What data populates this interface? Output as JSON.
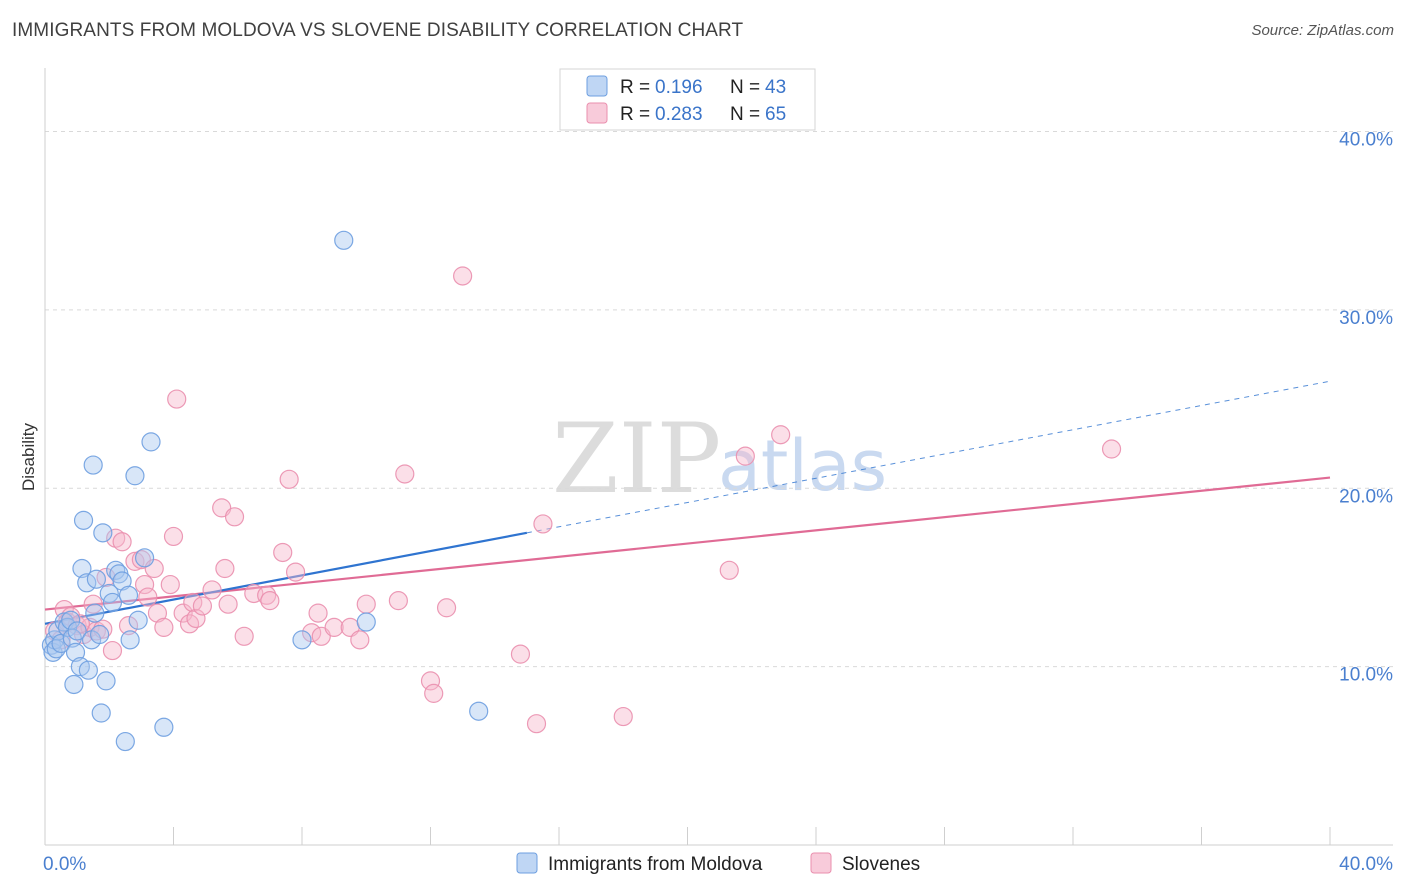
{
  "header": {
    "title": "IMMIGRANTS FROM MOLDOVA VS SLOVENE DISABILITY CORRELATION CHART",
    "source": "Source: ZipAtlas.com"
  },
  "watermark": {
    "zip": "ZIP",
    "atlas": "atlas"
  },
  "legend": {
    "rows": [
      {
        "r_label": "R =",
        "r_value": "0.196",
        "n_label": "N =",
        "n_value": "43"
      },
      {
        "r_label": "R =",
        "r_value": "0.283",
        "n_label": "N =",
        "n_value": "65"
      }
    ]
  },
  "bottom_legend": {
    "items": [
      {
        "label": "Immigrants from Moldova"
      },
      {
        "label": "Slovenes"
      }
    ]
  },
  "colors": {
    "blue_fill": "#a9c8f0",
    "blue_stroke": "#6e9fe0",
    "blue_line": "#2f74d0",
    "pink_fill": "#f6b9cd",
    "pink_stroke": "#ea8fae",
    "pink_line": "#e06b95",
    "grid": "#d9d9d9",
    "axis": "#cfcfcf"
  },
  "chart_data": {
    "type": "scatter",
    "title": "IMMIGRANTS FROM MOLDOVA VS SLOVENE DISABILITY CORRELATION CHART",
    "xlabel": "",
    "ylabel": "Disability",
    "xlim": [
      0,
      40
    ],
    "ylim": [
      0,
      43
    ],
    "x_tick_labels": [
      "0.0%",
      "40.0%"
    ],
    "y_ticks": [
      10,
      20,
      30,
      40
    ],
    "y_tick_labels": [
      "10.0%",
      "20.0%",
      "30.0%",
      "40.0%"
    ],
    "series": [
      {
        "name": "Immigrants from Moldova",
        "r": 0.196,
        "n": 43,
        "points": [
          [
            0.2,
            11.2
          ],
          [
            0.25,
            10.8
          ],
          [
            0.3,
            11.5
          ],
          [
            0.35,
            11.0
          ],
          [
            0.4,
            12.0
          ],
          [
            0.5,
            11.3
          ],
          [
            0.6,
            12.5
          ],
          [
            0.7,
            12.2
          ],
          [
            0.8,
            12.6
          ],
          [
            0.85,
            11.6
          ],
          [
            0.9,
            9.0
          ],
          [
            0.95,
            10.8
          ],
          [
            1.0,
            12.0
          ],
          [
            1.1,
            10.0
          ],
          [
            1.15,
            15.5
          ],
          [
            1.2,
            18.2
          ],
          [
            1.3,
            14.7
          ],
          [
            1.35,
            9.8
          ],
          [
            1.45,
            11.5
          ],
          [
            1.5,
            21.3
          ],
          [
            1.55,
            13.0
          ],
          [
            1.6,
            14.9
          ],
          [
            1.7,
            11.8
          ],
          [
            1.75,
            7.4
          ],
          [
            1.8,
            17.5
          ],
          [
            1.9,
            9.2
          ],
          [
            2.0,
            14.1
          ],
          [
            2.1,
            13.6
          ],
          [
            2.2,
            15.4
          ],
          [
            2.3,
            15.2
          ],
          [
            2.4,
            14.8
          ],
          [
            2.5,
            5.8
          ],
          [
            2.6,
            14.0
          ],
          [
            2.8,
            20.7
          ],
          [
            2.9,
            12.6
          ],
          [
            3.1,
            16.1
          ],
          [
            3.3,
            22.6
          ],
          [
            3.7,
            6.6
          ],
          [
            8.0,
            11.5
          ],
          [
            9.3,
            33.9
          ],
          [
            10.0,
            12.5
          ],
          [
            13.5,
            7.5
          ],
          [
            2.65,
            11.5
          ]
        ],
        "trend_solid": [
          [
            0,
            12.4
          ],
          [
            15,
            17.5
          ]
        ],
        "trend_dashed": [
          [
            15,
            17.5
          ],
          [
            40,
            26.0
          ]
        ]
      },
      {
        "name": "Slovenes",
        "r": 0.283,
        "n": 65,
        "points": [
          [
            0.3,
            12.0
          ],
          [
            0.5,
            11.5
          ],
          [
            0.6,
            13.2
          ],
          [
            0.7,
            12.5
          ],
          [
            0.8,
            12.8
          ],
          [
            1.0,
            12.3
          ],
          [
            1.2,
            11.8
          ],
          [
            1.4,
            12.2
          ],
          [
            1.5,
            13.5
          ],
          [
            1.6,
            12.0
          ],
          [
            1.8,
            12.1
          ],
          [
            1.9,
            15.0
          ],
          [
            2.1,
            10.9
          ],
          [
            2.2,
            17.2
          ],
          [
            2.4,
            17.0
          ],
          [
            2.6,
            12.3
          ],
          [
            2.8,
            15.9
          ],
          [
            3.0,
            16.0
          ],
          [
            3.1,
            14.6
          ],
          [
            3.2,
            13.9
          ],
          [
            3.4,
            15.5
          ],
          [
            3.5,
            13.0
          ],
          [
            3.7,
            12.2
          ],
          [
            3.9,
            14.6
          ],
          [
            4.0,
            17.3
          ],
          [
            4.1,
            25.0
          ],
          [
            4.3,
            13.0
          ],
          [
            4.5,
            12.4
          ],
          [
            4.6,
            13.6
          ],
          [
            4.7,
            12.7
          ],
          [
            4.9,
            13.4
          ],
          [
            5.2,
            14.3
          ],
          [
            5.5,
            18.9
          ],
          [
            5.6,
            15.5
          ],
          [
            5.7,
            13.5
          ],
          [
            5.9,
            18.4
          ],
          [
            6.2,
            11.7
          ],
          [
            6.5,
            14.1
          ],
          [
            6.9,
            14.0
          ],
          [
            7.0,
            13.7
          ],
          [
            7.4,
            16.4
          ],
          [
            7.6,
            20.5
          ],
          [
            7.8,
            15.3
          ],
          [
            8.3,
            11.9
          ],
          [
            8.5,
            13.0
          ],
          [
            8.6,
            11.7
          ],
          [
            9.0,
            12.2
          ],
          [
            9.5,
            12.2
          ],
          [
            9.8,
            11.5
          ],
          [
            10.0,
            13.5
          ],
          [
            11.0,
            13.7
          ],
          [
            11.2,
            20.8
          ],
          [
            12.0,
            9.2
          ],
          [
            12.1,
            8.5
          ],
          [
            12.5,
            13.3
          ],
          [
            13.0,
            31.9
          ],
          [
            14.8,
            10.7
          ],
          [
            15.3,
            6.8
          ],
          [
            15.5,
            18.0
          ],
          [
            18.0,
            7.2
          ],
          [
            21.3,
            15.4
          ],
          [
            21.8,
            21.8
          ],
          [
            22.9,
            23.0
          ],
          [
            33.2,
            22.2
          ],
          [
            1.1,
            12.4
          ]
        ],
        "trend_solid": [
          [
            0,
            13.2
          ],
          [
            40,
            20.6
          ]
        ]
      }
    ]
  }
}
